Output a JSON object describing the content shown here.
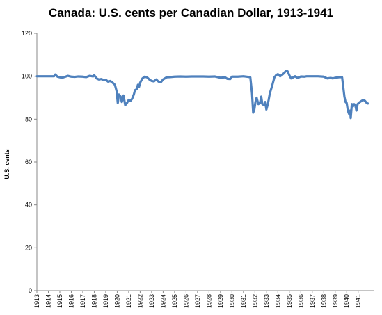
{
  "chart_data": {
    "type": "line",
    "title": "Canada: U.S. cents per Canadian Dollar, 1913-1941",
    "ylabel": "U.S. cents",
    "xlabel": "",
    "ylim": [
      0,
      120
    ],
    "y_ticks": [
      "0",
      "20",
      "40",
      "60",
      "80",
      "100",
      "120"
    ],
    "x_ticks": [
      "1913",
      "1914",
      "1915",
      "1916",
      "1917",
      "1918",
      "1919",
      "1920",
      "1921",
      "1922",
      "1923",
      "1924",
      "1925",
      "1926",
      "1927",
      "1928",
      "1929",
      "1930",
      "1931",
      "1932",
      "1933",
      "1934",
      "1935",
      "1936",
      "1937",
      "1938",
      "1939",
      "1940",
      "1941"
    ],
    "grid": false,
    "legend": "none",
    "series": [
      {
        "color": "#4f81bd",
        "points": [
          [
            1913.0,
            100
          ],
          [
            1914.0,
            100
          ],
          [
            1914.5,
            100
          ],
          [
            1914.6,
            100.8
          ],
          [
            1914.8,
            99.8
          ],
          [
            1915.0,
            99.5
          ],
          [
            1915.2,
            99.3
          ],
          [
            1915.5,
            99.8
          ],
          [
            1915.7,
            100.2
          ],
          [
            1916.0,
            99.8
          ],
          [
            1916.3,
            99.7
          ],
          [
            1916.6,
            99.9
          ],
          [
            1917.0,
            99.8
          ],
          [
            1917.3,
            99.6
          ],
          [
            1917.6,
            100.2
          ],
          [
            1917.9,
            99.9
          ],
          [
            1918.0,
            100.5
          ],
          [
            1918.2,
            99.0
          ],
          [
            1918.4,
            98.5
          ],
          [
            1918.6,
            98.7
          ],
          [
            1918.8,
            98.3
          ],
          [
            1919.0,
            98.4
          ],
          [
            1919.2,
            97.5
          ],
          [
            1919.4,
            97.8
          ],
          [
            1919.6,
            97.0
          ],
          [
            1919.8,
            96.0
          ],
          [
            1919.95,
            93.0
          ],
          [
            1920.05,
            87.5
          ],
          [
            1920.15,
            91.5
          ],
          [
            1920.3,
            90.5
          ],
          [
            1920.4,
            88.0
          ],
          [
            1920.55,
            91.0
          ],
          [
            1920.7,
            86.5
          ],
          [
            1920.85,
            87.5
          ],
          [
            1921.0,
            89.0
          ],
          [
            1921.15,
            88.5
          ],
          [
            1921.3,
            89.5
          ],
          [
            1921.45,
            91.5
          ],
          [
            1921.55,
            93.5
          ],
          [
            1921.7,
            94.0
          ],
          [
            1921.8,
            96.0
          ],
          [
            1921.9,
            95.0
          ],
          [
            1922.0,
            97.0
          ],
          [
            1922.2,
            99.0
          ],
          [
            1922.4,
            99.8
          ],
          [
            1922.6,
            99.5
          ],
          [
            1922.8,
            98.5
          ],
          [
            1923.0,
            97.8
          ],
          [
            1923.2,
            97.6
          ],
          [
            1923.4,
            98.5
          ],
          [
            1923.6,
            97.5
          ],
          [
            1923.8,
            97.2
          ],
          [
            1924.0,
            98.5
          ],
          [
            1924.3,
            99.5
          ],
          [
            1924.6,
            99.6
          ],
          [
            1925.0,
            99.8
          ],
          [
            1925.5,
            99.9
          ],
          [
            1926.0,
            99.8
          ],
          [
            1926.5,
            99.9
          ],
          [
            1927.0,
            99.9
          ],
          [
            1927.5,
            99.9
          ],
          [
            1928.0,
            99.8
          ],
          [
            1928.5,
            99.9
          ],
          [
            1929.0,
            99.3
          ],
          [
            1929.4,
            99.5
          ],
          [
            1929.6,
            98.8
          ],
          [
            1929.85,
            98.7
          ],
          [
            1930.0,
            99.8
          ],
          [
            1930.5,
            99.8
          ],
          [
            1931.0,
            100.0
          ],
          [
            1931.4,
            99.7
          ],
          [
            1931.6,
            99.5
          ],
          [
            1931.75,
            92.0
          ],
          [
            1931.85,
            83.0
          ],
          [
            1931.95,
            84.5
          ],
          [
            1932.05,
            88.0
          ],
          [
            1932.15,
            90.0
          ],
          [
            1932.3,
            87.0
          ],
          [
            1932.45,
            87.5
          ],
          [
            1932.55,
            90.5
          ],
          [
            1932.65,
            87.0
          ],
          [
            1932.8,
            86.5
          ],
          [
            1932.9,
            88.0
          ],
          [
            1933.0,
            84.5
          ],
          [
            1933.1,
            86.5
          ],
          [
            1933.2,
            89.0
          ],
          [
            1933.3,
            92.0
          ],
          [
            1933.5,
            95.5
          ],
          [
            1933.7,
            99.5
          ],
          [
            1933.85,
            100.5
          ],
          [
            1934.0,
            101.0
          ],
          [
            1934.2,
            100.0
          ],
          [
            1934.4,
            100.8
          ],
          [
            1934.55,
            101.5
          ],
          [
            1934.7,
            102.5
          ],
          [
            1934.85,
            102.3
          ],
          [
            1935.0,
            100.5
          ],
          [
            1935.15,
            99.0
          ],
          [
            1935.35,
            99.5
          ],
          [
            1935.5,
            100.0
          ],
          [
            1935.7,
            99.2
          ],
          [
            1935.9,
            99.6
          ],
          [
            1936.0,
            99.9
          ],
          [
            1936.3,
            99.8
          ],
          [
            1936.5,
            100.0
          ],
          [
            1937.0,
            100.0
          ],
          [
            1937.5,
            100.0
          ],
          [
            1938.0,
            99.8
          ],
          [
            1938.3,
            99.0
          ],
          [
            1938.6,
            99.2
          ],
          [
            1938.8,
            99.0
          ],
          [
            1939.0,
            99.3
          ],
          [
            1939.4,
            99.6
          ],
          [
            1939.6,
            99.5
          ],
          [
            1939.7,
            95.0
          ],
          [
            1939.8,
            90.5
          ],
          [
            1939.9,
            88.0
          ],
          [
            1940.0,
            87.5
          ],
          [
            1940.1,
            84.0
          ],
          [
            1940.2,
            82.5
          ],
          [
            1940.3,
            84.0
          ],
          [
            1940.35,
            80.5
          ],
          [
            1940.45,
            87.0
          ],
          [
            1940.55,
            86.0
          ],
          [
            1940.65,
            87.0
          ],
          [
            1940.75,
            86.5
          ],
          [
            1940.85,
            84.0
          ],
          [
            1940.95,
            87.0
          ],
          [
            1941.1,
            87.8
          ],
          [
            1941.3,
            88.5
          ],
          [
            1941.45,
            89.0
          ],
          [
            1941.6,
            88.5
          ],
          [
            1941.75,
            87.5
          ],
          [
            1941.85,
            87.3
          ]
        ]
      }
    ]
  }
}
